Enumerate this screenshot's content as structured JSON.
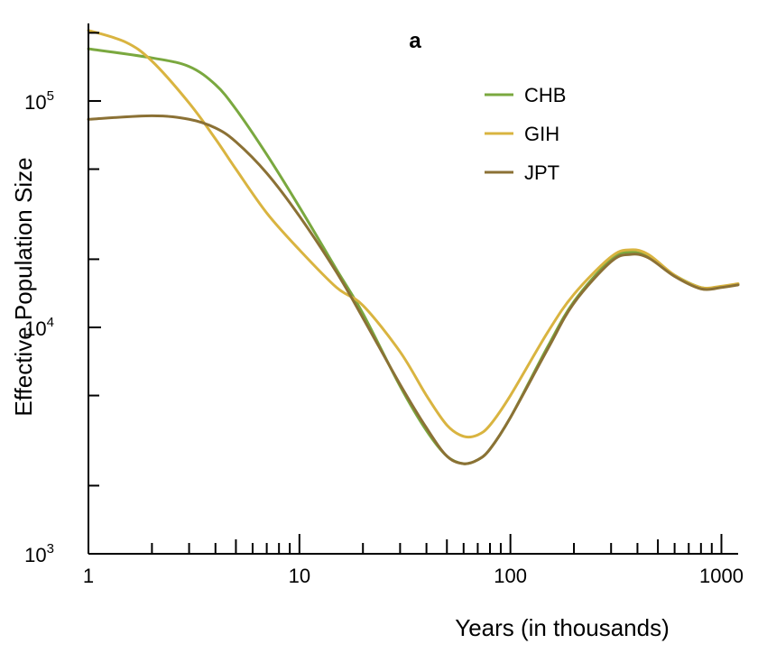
{
  "chart_data": {
    "type": "line",
    "panel_label": "a",
    "title": "",
    "xlabel": "Years (in thousands)",
    "ylabel": "Effective Population Size",
    "x_scale": "log",
    "y_scale": "log",
    "xlim": [
      1,
      1200
    ],
    "ylim": [
      1000,
      220000
    ],
    "x_ticks": [
      {
        "value": 1,
        "label": "1"
      },
      {
        "value": 10,
        "label": "10"
      },
      {
        "value": 100,
        "label": "100"
      },
      {
        "value": 1000,
        "label": "1000"
      }
    ],
    "y_ticks": [
      {
        "value": 1000,
        "base": "10",
        "exp": "3"
      },
      {
        "value": 10000,
        "base": "10",
        "exp": "4"
      },
      {
        "value": 100000,
        "base": "10",
        "exp": "5"
      }
    ],
    "grid": false,
    "legend_position": "top-right",
    "series": [
      {
        "name": "CHB",
        "color": "#7aa83f",
        "points": [
          [
            1,
            170000
          ],
          [
            2,
            155000
          ],
          [
            3,
            142000
          ],
          [
            4,
            118000
          ],
          [
            5,
            92000
          ],
          [
            7,
            58000
          ],
          [
            10,
            34000
          ],
          [
            15,
            18000
          ],
          [
            20,
            11500
          ],
          [
            30,
            5500
          ],
          [
            40,
            3500
          ],
          [
            50,
            2700
          ],
          [
            60,
            2500
          ],
          [
            70,
            2600
          ],
          [
            80,
            2900
          ],
          [
            100,
            4000
          ],
          [
            150,
            8200
          ],
          [
            200,
            13000
          ],
          [
            300,
            20000
          ],
          [
            370,
            21500
          ],
          [
            450,
            20500
          ],
          [
            600,
            17000
          ],
          [
            800,
            15000
          ],
          [
            1000,
            15100
          ],
          [
            1200,
            15500
          ]
        ]
      },
      {
        "name": "GIH",
        "color": "#d9b440",
        "points": [
          [
            1,
            205000
          ],
          [
            1.5,
            182000
          ],
          [
            2,
            150000
          ],
          [
            3,
            98000
          ],
          [
            4,
            68000
          ],
          [
            5,
            50000
          ],
          [
            7,
            32000
          ],
          [
            10,
            22000
          ],
          [
            15,
            15000
          ],
          [
            20,
            12500
          ],
          [
            30,
            7800
          ],
          [
            40,
            5000
          ],
          [
            50,
            3700
          ],
          [
            60,
            3300
          ],
          [
            70,
            3350
          ],
          [
            80,
            3700
          ],
          [
            100,
            5000
          ],
          [
            150,
            9500
          ],
          [
            200,
            14000
          ],
          [
            300,
            20500
          ],
          [
            370,
            22000
          ],
          [
            450,
            21000
          ],
          [
            600,
            17000
          ],
          [
            800,
            15000
          ],
          [
            1000,
            15200
          ],
          [
            1200,
            15600
          ]
        ]
      },
      {
        "name": "JPT",
        "color": "#8b7135",
        "points": [
          [
            1,
            83000
          ],
          [
            2,
            86000
          ],
          [
            3,
            83000
          ],
          [
            4,
            76000
          ],
          [
            5,
            66000
          ],
          [
            7,
            48000
          ],
          [
            10,
            31000
          ],
          [
            15,
            17500
          ],
          [
            20,
            11000
          ],
          [
            30,
            5600
          ],
          [
            40,
            3600
          ],
          [
            50,
            2700
          ],
          [
            60,
            2500
          ],
          [
            70,
            2600
          ],
          [
            80,
            2900
          ],
          [
            100,
            4000
          ],
          [
            150,
            8000
          ],
          [
            200,
            12800
          ],
          [
            300,
            19500
          ],
          [
            370,
            21000
          ],
          [
            450,
            20300
          ],
          [
            600,
            16800
          ],
          [
            800,
            14800
          ],
          [
            1000,
            15000
          ],
          [
            1200,
            15400
          ]
        ]
      }
    ]
  }
}
